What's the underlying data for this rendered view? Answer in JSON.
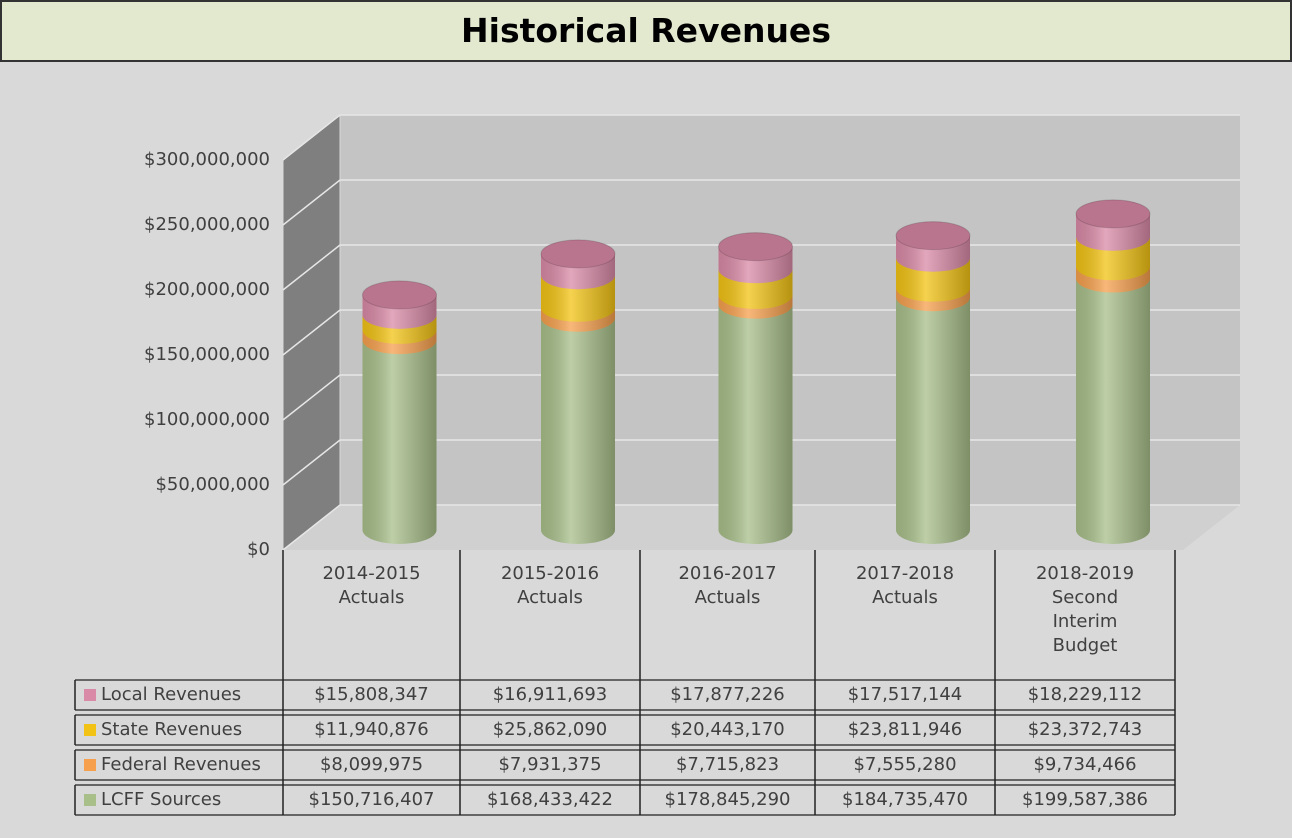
{
  "chart_data": {
    "type": "bar3d-stacked",
    "title": "Historical Revenues",
    "categories": [
      "2014-2015 Actuals",
      "2015-2016 Actuals",
      "2016-2017 Actuals",
      "2017-2018 Actuals",
      "2018-2019 Second Interim Budget"
    ],
    "series": [
      {
        "name": "LCFF Sources",
        "color": "#a8bf8a",
        "values": [
          150716407,
          168433422,
          178845290,
          184735470,
          199587386
        ],
        "value_labels": [
          "$150,716,407",
          "$168,433,422",
          "$178,845,290",
          "$184,735,470",
          "$199,587,386"
        ]
      },
      {
        "name": "Federal Revenues",
        "color": "#f6a04d",
        "values": [
          8099975,
          7931375,
          7715823,
          7555280,
          9734466
        ],
        "value_labels": [
          "$8,099,975",
          "$7,931,375",
          "$7,715,823",
          "$7,555,280",
          "$9,734,466"
        ]
      },
      {
        "name": "State Revenues",
        "color": "#f2c314",
        "values": [
          11940876,
          25862090,
          20443170,
          23811946,
          23372743
        ],
        "value_labels": [
          "$11,940,876",
          "$25,862,090",
          "$20,443,170",
          "$23,811,946",
          "$23,372,743"
        ]
      },
      {
        "name": "Local Revenues",
        "color": "#d98aa6",
        "values": [
          15808347,
          16911693,
          17877226,
          17517144,
          18229112
        ],
        "value_labels": [
          "$15,808,347",
          "$16,911,693",
          "$17,877,226",
          "$17,517,144",
          "$18,229,112"
        ]
      }
    ],
    "ylim": [
      0,
      300000000
    ],
    "yticks": [
      {
        "value": 0,
        "label": "$0"
      },
      {
        "value": 50000000,
        "label": "$50,000,000"
      },
      {
        "value": 100000000,
        "label": "$100,000,000"
      },
      {
        "value": 150000000,
        "label": "$150,000,000"
      },
      {
        "value": 200000000,
        "label": "$200,000,000"
      },
      {
        "value": 250000000,
        "label": "$250,000,000"
      },
      {
        "value": 300000000,
        "label": "$300,000,000"
      }
    ],
    "grid": true
  }
}
